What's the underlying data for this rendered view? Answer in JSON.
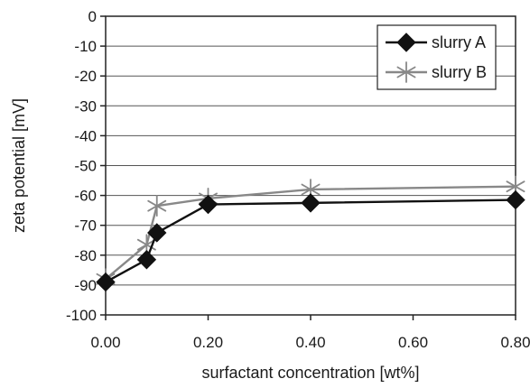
{
  "chart_data": {
    "type": "line",
    "xlabel": "surfactant concentration [wt%]",
    "ylabel": "zeta potential [mV]",
    "xlim": [
      0,
      0.8
    ],
    "ylim": [
      -100,
      0
    ],
    "x_ticks": [
      {
        "value": 0.0,
        "label": "0.00"
      },
      {
        "value": 0.2,
        "label": "0.20"
      },
      {
        "value": 0.4,
        "label": "0.40"
      },
      {
        "value": 0.6,
        "label": "0.60"
      },
      {
        "value": 0.8,
        "label": "0.80"
      }
    ],
    "y_ticks": [
      {
        "value": 0,
        "label": "0"
      },
      {
        "value": -10,
        "label": "-10"
      },
      {
        "value": -20,
        "label": "-20"
      },
      {
        "value": -30,
        "label": "-30"
      },
      {
        "value": -40,
        "label": "-40"
      },
      {
        "value": -50,
        "label": "-50"
      },
      {
        "value": -60,
        "label": "-60"
      },
      {
        "value": -70,
        "label": "-70"
      },
      {
        "value": -80,
        "label": "-80"
      },
      {
        "value": -90,
        "label": "-90"
      },
      {
        "value": -100,
        "label": "-100"
      }
    ],
    "grid": "horizontal",
    "legend_position": "top-right",
    "series": [
      {
        "name": "slurry A",
        "color": "#111111",
        "marker": "diamond",
        "points": [
          {
            "x": 0.0,
            "y": -89
          },
          {
            "x": 0.08,
            "y": -81.5
          },
          {
            "x": 0.1,
            "y": -72.5
          },
          {
            "x": 0.2,
            "y": -63
          },
          {
            "x": 0.4,
            "y": -62.5
          },
          {
            "x": 0.8,
            "y": -61.5
          }
        ]
      },
      {
        "name": "slurry B",
        "color": "#888888",
        "marker": "asterisk",
        "points": [
          {
            "x": 0.0,
            "y": -88
          },
          {
            "x": 0.08,
            "y": -76.5
          },
          {
            "x": 0.1,
            "y": -63.5
          },
          {
            "x": 0.2,
            "y": -61
          },
          {
            "x": 0.4,
            "y": -58
          },
          {
            "x": 0.8,
            "y": -57
          }
        ]
      }
    ]
  }
}
